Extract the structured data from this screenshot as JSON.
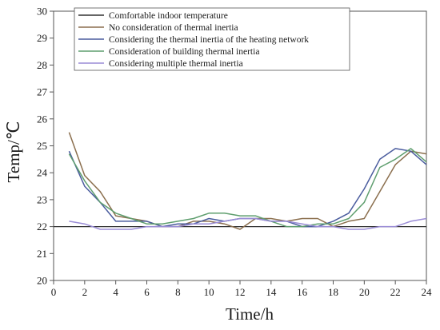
{
  "chart_data": {
    "type": "line",
    "xlabel": "Time/h",
    "ylabel": "Temp/℃",
    "xlim": [
      0,
      24
    ],
    "ylim": [
      20,
      30
    ],
    "xticks": [
      0,
      2,
      4,
      6,
      8,
      10,
      12,
      14,
      16,
      18,
      20,
      22,
      24
    ],
    "yticks": [
      20,
      21,
      22,
      23,
      24,
      25,
      26,
      27,
      28,
      29,
      30
    ],
    "grid": false,
    "legend_position": "top-left",
    "series": [
      {
        "name": "Comfortable indoor temperature",
        "color": "#333333",
        "x": [
          0,
          24
        ],
        "y": [
          22.0,
          22.0
        ]
      },
      {
        "name": "No consideration of thermal inertia",
        "color": "#8b6f4e",
        "x": [
          1,
          2,
          3,
          4,
          5,
          6,
          7,
          8,
          9,
          10,
          11,
          12,
          13,
          14,
          15,
          16,
          17,
          18,
          19,
          20,
          21,
          22,
          23,
          24
        ],
        "y": [
          25.5,
          23.9,
          23.3,
          22.4,
          22.3,
          22.2,
          22.0,
          22.0,
          22.2,
          22.2,
          22.1,
          21.9,
          22.3,
          22.3,
          22.2,
          22.3,
          22.3,
          22.0,
          22.2,
          22.3,
          23.3,
          24.3,
          24.8,
          24.7
        ]
      },
      {
        "name": "Considering the thermal inertia of the heating network",
        "color": "#4a5c9e",
        "x": [
          1,
          2,
          3,
          4,
          5,
          6,
          7,
          8,
          9,
          10,
          11,
          12,
          13,
          14,
          15,
          16,
          17,
          18,
          19,
          20,
          21,
          22,
          23,
          24
        ],
        "y": [
          24.8,
          23.5,
          22.9,
          22.2,
          22.2,
          22.2,
          22.0,
          22.1,
          22.1,
          22.3,
          22.2,
          22.3,
          22.3,
          22.2,
          22.2,
          22.0,
          22.0,
          22.2,
          22.5,
          23.4,
          24.5,
          24.9,
          24.8,
          24.3
        ]
      },
      {
        "name": "Consideration of building thermal inertia",
        "color": "#5e9e6e",
        "x": [
          1,
          2,
          3,
          4,
          5,
          6,
          7,
          8,
          9,
          10,
          11,
          12,
          13,
          14,
          15,
          16,
          17,
          18,
          19,
          20,
          21,
          22,
          23,
          24
        ],
        "y": [
          24.7,
          23.7,
          22.9,
          22.5,
          22.3,
          22.1,
          22.1,
          22.2,
          22.3,
          22.5,
          22.5,
          22.4,
          22.4,
          22.2,
          22.0,
          22.0,
          22.1,
          22.1,
          22.3,
          22.9,
          24.2,
          24.5,
          24.9,
          24.4
        ]
      },
      {
        "name": "Considering multiple thermal inertia",
        "color": "#9a8cd6",
        "x": [
          1,
          2,
          3,
          4,
          5,
          6,
          7,
          8,
          9,
          10,
          11,
          12,
          13,
          14,
          15,
          16,
          17,
          18,
          19,
          20,
          21,
          22,
          23,
          24
        ],
        "y": [
          22.2,
          22.1,
          21.9,
          21.9,
          21.9,
          22.0,
          22.0,
          22.0,
          22.1,
          22.1,
          22.2,
          22.3,
          22.3,
          22.2,
          22.2,
          22.1,
          22.0,
          22.0,
          21.9,
          21.9,
          22.0,
          22.0,
          22.2,
          22.3
        ]
      }
    ]
  }
}
